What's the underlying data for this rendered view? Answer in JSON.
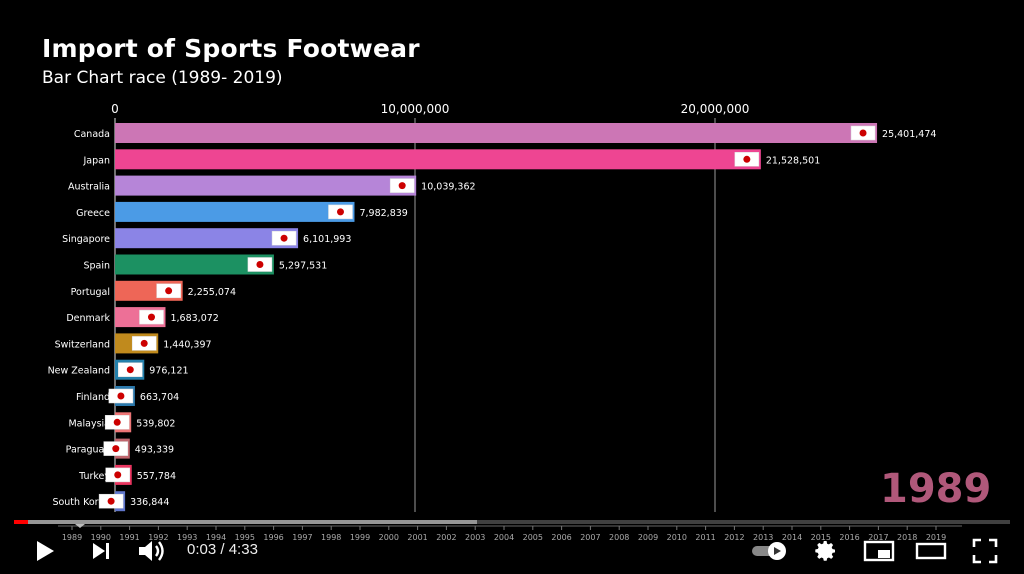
{
  "video": {
    "title": "Import of Sports Footwear",
    "subtitle": "Bar Chart race (1989- 2019)",
    "current_year": "1989",
    "time_current": "0:03",
    "time_total": "4:33",
    "time_separator": " / ",
    "progress_played": 0.014,
    "progress_buffered": 0.465
  },
  "chart_data": {
    "type": "bar",
    "orientation": "horizontal",
    "title": "Import of Sports Footwear",
    "subtitle": "Bar Chart race (1989- 2019)",
    "x_ticks": [
      0,
      10000000,
      20000000
    ],
    "x_tick_labels": [
      "0",
      "10,000,000",
      "20,000,000"
    ],
    "xlim": [
      0,
      29000000
    ],
    "categories": [
      "Canada",
      "Japan",
      "Australia",
      "Greece",
      "Singapore",
      "Spain",
      "Portugal",
      "Denmark",
      "Switzerland",
      "New Zealand",
      "Finland",
      "Malaysia",
      "Paraguay",
      "Turkey",
      "South Korea"
    ],
    "values": [
      25401474,
      21528501,
      10039362,
      7982839,
      6101993,
      5297531,
      2255074,
      1683072,
      1440397,
      976121,
      663704,
      539802,
      493339,
      557784,
      336844
    ],
    "value_labels": [
      "25,401,474",
      "21,528,501",
      "10,039,362",
      "7,982,839",
      "6,101,993",
      "5,297,531",
      "2,255,074",
      "1,683,072",
      "1,440,397",
      "976,121",
      "663,704",
      "539,802",
      "493,339",
      "557,784",
      "336,844"
    ],
    "colors": [
      "#cc76b5",
      "#ee4592",
      "#b685d8",
      "#4b9be6",
      "#8b84e6",
      "#1c9162",
      "#ee6657",
      "#ed7097",
      "#c08a1d",
      "#2480ab",
      "#2b78ab",
      "#ed7576",
      "#c0666e",
      "#ea3560",
      "#6076cb"
    ],
    "flag_icons": [
      "canada-flag-icon",
      "japan-flag-icon",
      "australia-flag-icon",
      "greece-flag-icon",
      "singapore-flag-icon",
      "spain-flag-icon",
      "portugal-flag-icon",
      "denmark-flag-icon",
      "switzerland-flag-icon",
      "new-zealand-flag-icon",
      "finland-flag-icon",
      "malaysia-flag-icon",
      "paraguay-flag-icon",
      "turkey-flag-icon",
      "south-korea-flag-icon"
    ],
    "grid": true,
    "timeline_years": [
      "1989",
      "1990",
      "1991",
      "1992",
      "1993",
      "1994",
      "1995",
      "1996",
      "1997",
      "1998",
      "1999",
      "2000",
      "2001",
      "2002",
      "2003",
      "2004",
      "2005",
      "2006",
      "2007",
      "2008",
      "2009",
      "2010",
      "2011",
      "2012",
      "2013",
      "2014",
      "2015",
      "2016",
      "2017",
      "2018",
      "2019"
    ]
  },
  "controls": {
    "play_icon": "play-icon",
    "next_icon": "next-icon",
    "volume_icon": "volume-icon",
    "autoplay_icon": "autoplay-toggle-icon",
    "settings_icon": "gear-icon",
    "miniplayer_icon": "miniplayer-icon",
    "theater_icon": "theater-mode-icon",
    "fullscreen_icon": "fullscreen-icon"
  }
}
